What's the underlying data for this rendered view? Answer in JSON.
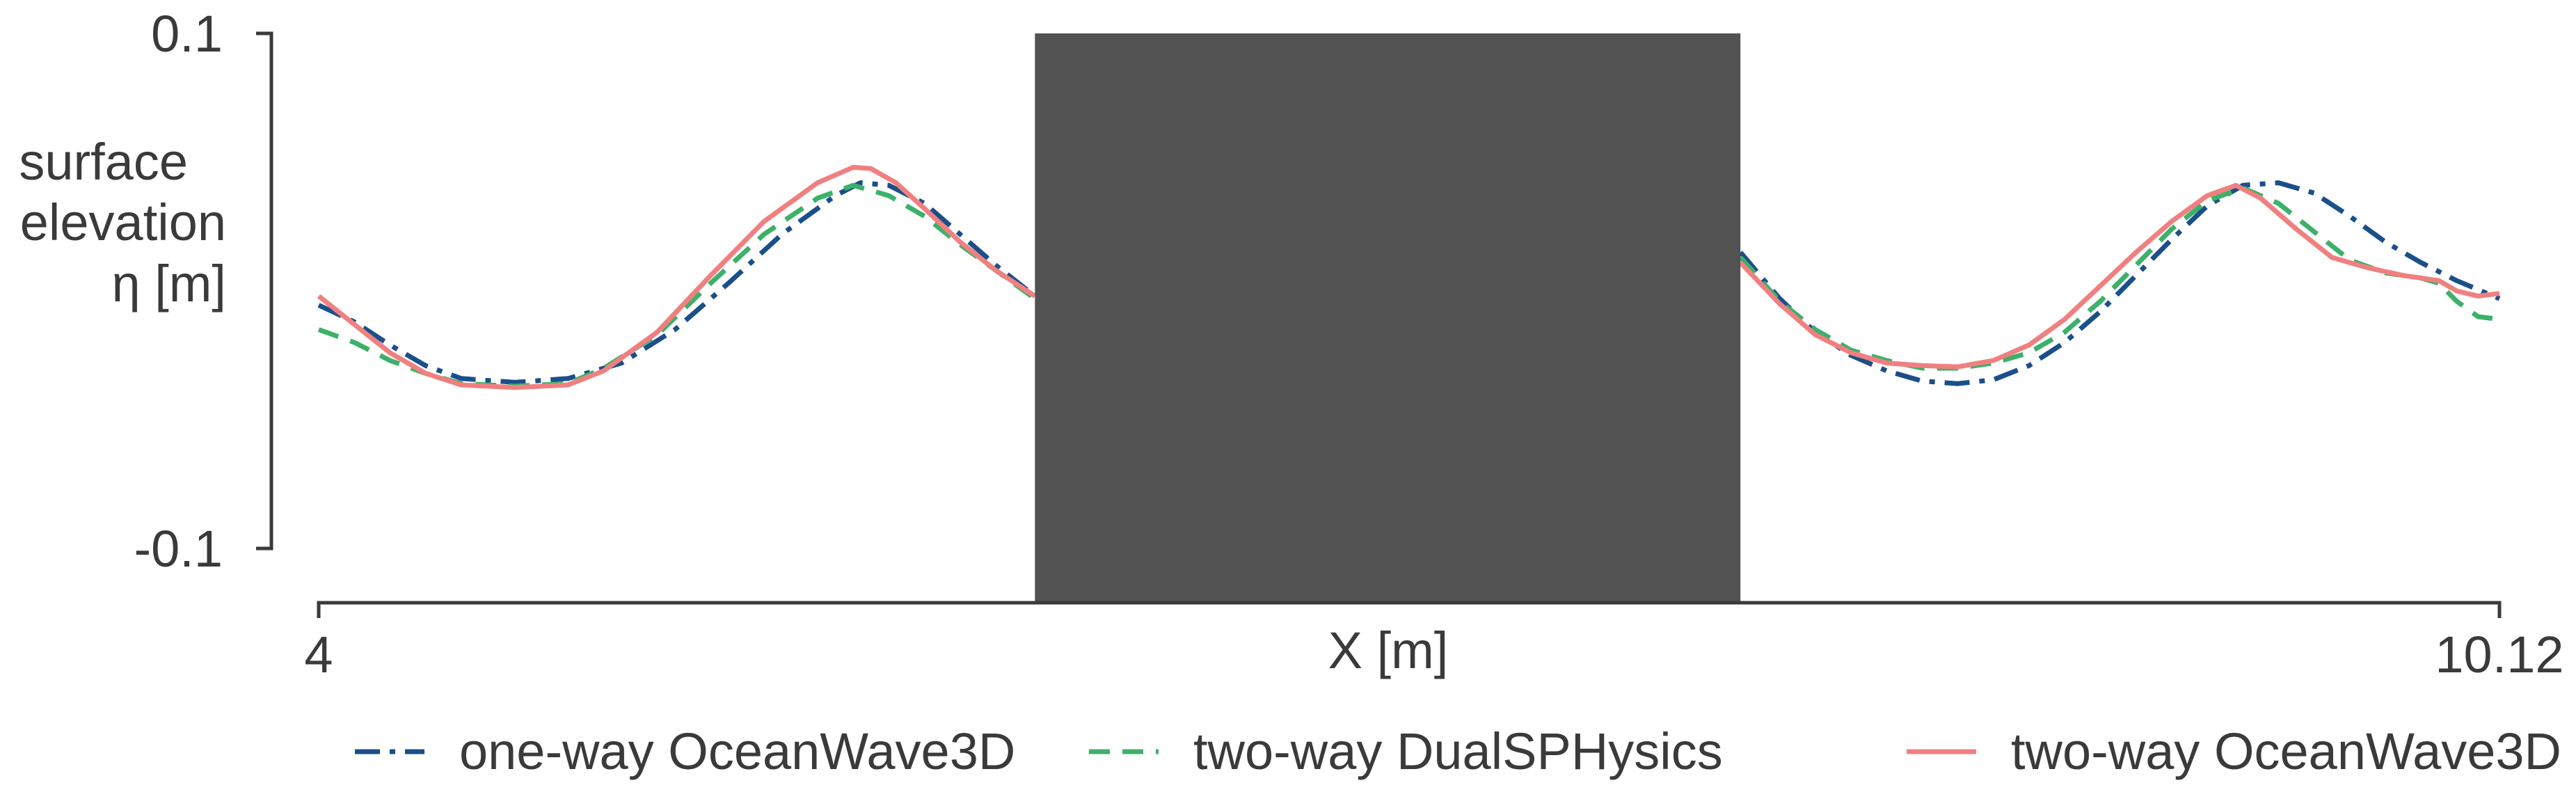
{
  "chart_data": {
    "type": "line",
    "title": "",
    "xlabel": "X [m]",
    "ylabel_lines": [
      "surface",
      "elevation",
      "η [m]"
    ],
    "xlim": [
      4,
      10.12
    ],
    "ylim": [
      -0.1,
      0.1
    ],
    "x_ticks": [
      {
        "value": 4,
        "label": "4"
      },
      {
        "value": 10.12,
        "label": "10.12"
      }
    ],
    "y_ticks": [
      {
        "value": 0.1,
        "label": "0.1"
      },
      {
        "value": -0.1,
        "label": "-0.1"
      }
    ],
    "grid": false,
    "legend_position": "bottom",
    "obstacle": {
      "x_range": [
        6.01,
        7.99
      ],
      "color": "#525252"
    },
    "series": [
      {
        "name": "one-way OceanWave3D",
        "color": "#1a4f8a",
        "dash": "dashdot",
        "segments": [
          [
            [
              4.0,
              -0.0055
            ],
            [
              4.1,
              -0.012
            ],
            [
              4.2,
              -0.021
            ],
            [
              4.3,
              -0.029
            ],
            [
              4.4,
              -0.034
            ],
            [
              4.55,
              -0.0355
            ],
            [
              4.7,
              -0.034
            ],
            [
              4.85,
              -0.028
            ],
            [
              5.0,
              -0.015
            ],
            [
              5.15,
              0.003
            ],
            [
              5.3,
              0.022
            ],
            [
              5.45,
              0.037
            ],
            [
              5.52,
              0.042
            ],
            [
              5.6,
              0.041
            ],
            [
              5.7,
              0.034
            ],
            [
              5.8,
              0.022
            ],
            [
              5.9,
              0.01
            ],
            [
              6.01,
              -0.002
            ]
          ],
          [
            [
              7.99,
              0.015
            ],
            [
              8.1,
              -0.003
            ],
            [
              8.2,
              -0.016
            ],
            [
              8.3,
              -0.025
            ],
            [
              8.4,
              -0.031
            ],
            [
              8.5,
              -0.035
            ],
            [
              8.6,
              -0.036
            ],
            [
              8.7,
              -0.0345
            ],
            [
              8.8,
              -0.029
            ],
            [
              8.9,
              -0.02
            ],
            [
              9.0,
              -0.008
            ],
            [
              9.1,
              0.006
            ],
            [
              9.2,
              0.02
            ],
            [
              9.3,
              0.033
            ],
            [
              9.4,
              0.041
            ],
            [
              9.5,
              0.042
            ],
            [
              9.6,
              0.038
            ],
            [
              9.7,
              0.029
            ],
            [
              9.8,
              0.019
            ],
            [
              9.9,
              0.011
            ],
            [
              10.0,
              0.004
            ],
            [
              10.12,
              -0.003
            ]
          ]
        ]
      },
      {
        "name": "two-way DualSPHysics",
        "color": "#3db06a",
        "dash": "dashed",
        "segments": [
          [
            [
              4.0,
              -0.015
            ],
            [
              4.1,
              -0.02
            ],
            [
              4.2,
              -0.027
            ],
            [
              4.3,
              -0.032
            ],
            [
              4.4,
              -0.036
            ],
            [
              4.55,
              -0.037
            ],
            [
              4.7,
              -0.036
            ],
            [
              4.8,
              -0.03
            ],
            [
              4.95,
              -0.017
            ],
            [
              5.1,
              0.003
            ],
            [
              5.25,
              0.022
            ],
            [
              5.4,
              0.036
            ],
            [
              5.5,
              0.041
            ],
            [
              5.6,
              0.037
            ],
            [
              5.7,
              0.029
            ],
            [
              5.8,
              0.018
            ],
            [
              5.9,
              0.008
            ],
            [
              6.01,
              -0.003
            ]
          ],
          [
            [
              7.99,
              0.013
            ],
            [
              8.1,
              -0.004
            ],
            [
              8.2,
              -0.015
            ],
            [
              8.3,
              -0.023
            ],
            [
              8.4,
              -0.027
            ],
            [
              8.5,
              -0.03
            ],
            [
              8.6,
              -0.03
            ],
            [
              8.7,
              -0.028
            ],
            [
              8.8,
              -0.024
            ],
            [
              8.9,
              -0.016
            ],
            [
              9.0,
              -0.004
            ],
            [
              9.1,
              0.01
            ],
            [
              9.2,
              0.024
            ],
            [
              9.3,
              0.035
            ],
            [
              9.4,
              0.04
            ],
            [
              9.5,
              0.034
            ],
            [
              9.6,
              0.023
            ],
            [
              9.7,
              0.012
            ],
            [
              9.8,
              0.007
            ],
            [
              9.9,
              0.005
            ],
            [
              9.95,
              0.003
            ],
            [
              10.0,
              -0.004
            ],
            [
              10.06,
              -0.01
            ],
            [
              10.12,
              -0.011
            ]
          ]
        ]
      },
      {
        "name": "two-way OceanWave3D",
        "color": "#f08080",
        "dash": "solid",
        "segments": [
          [
            [
              4.0,
              -0.002
            ],
            [
              4.1,
              -0.013
            ],
            [
              4.2,
              -0.024
            ],
            [
              4.3,
              -0.032
            ],
            [
              4.4,
              -0.0365
            ],
            [
              4.55,
              -0.0375
            ],
            [
              4.7,
              -0.0365
            ],
            [
              4.8,
              -0.031
            ],
            [
              4.95,
              -0.016
            ],
            [
              5.1,
              0.006
            ],
            [
              5.25,
              0.027
            ],
            [
              5.4,
              0.042
            ],
            [
              5.5,
              0.048
            ],
            [
              5.55,
              0.0475
            ],
            [
              5.62,
              0.042
            ],
            [
              5.7,
              0.032
            ],
            [
              5.8,
              0.019
            ],
            [
              5.9,
              0.008
            ],
            [
              6.01,
              -0.002
            ]
          ],
          [
            [
              7.99,
              0.011
            ],
            [
              8.1,
              -0.005
            ],
            [
              8.2,
              -0.017
            ],
            [
              8.3,
              -0.024
            ],
            [
              8.4,
              -0.028
            ],
            [
              8.5,
              -0.029
            ],
            [
              8.6,
              -0.0295
            ],
            [
              8.7,
              -0.027
            ],
            [
              8.8,
              -0.021
            ],
            [
              8.9,
              -0.011
            ],
            [
              9.0,
              0.002
            ],
            [
              9.1,
              0.015
            ],
            [
              9.2,
              0.027
            ],
            [
              9.3,
              0.037
            ],
            [
              9.38,
              0.041
            ],
            [
              9.45,
              0.036
            ],
            [
              9.55,
              0.024
            ],
            [
              9.65,
              0.013
            ],
            [
              9.75,
              0.009
            ],
            [
              9.85,
              0.006
            ],
            [
              9.95,
              0.004
            ],
            [
              10.0,
              0.0
            ],
            [
              10.06,
              -0.002
            ],
            [
              10.12,
              -0.001
            ]
          ]
        ]
      }
    ]
  }
}
